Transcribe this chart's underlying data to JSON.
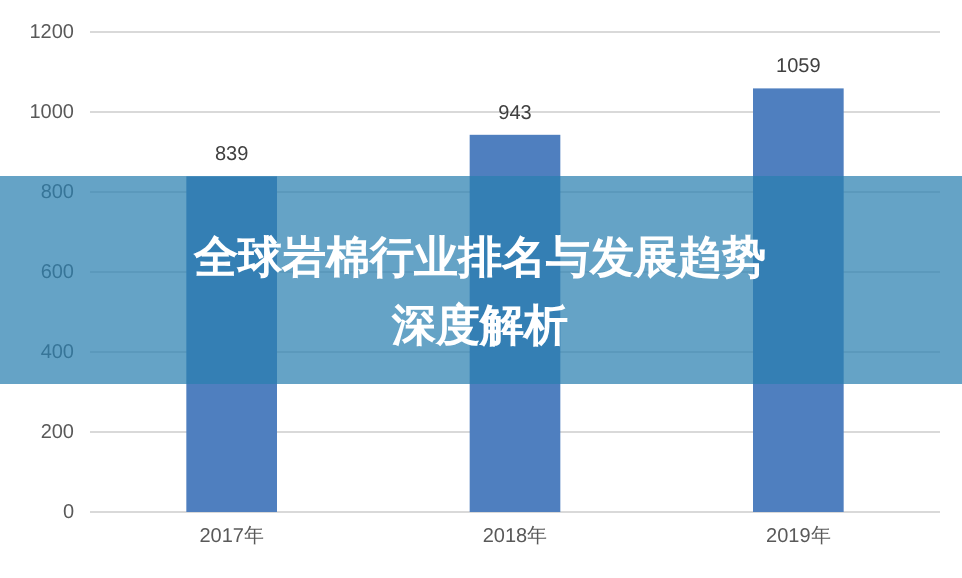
{
  "chart_data": {
    "type": "bar",
    "title": "全球岩棉行业排名与发展趋势深度解析",
    "categories": [
      "2017年",
      "2018年",
      "2019年"
    ],
    "values": [
      839,
      943,
      1059
    ],
    "color": "#4f7fbf",
    "ylim": [
      0,
      1200
    ],
    "yticks": [
      0,
      200,
      400,
      600,
      800,
      1000,
      1200
    ],
    "grid": "y",
    "data_labels": true
  }
}
